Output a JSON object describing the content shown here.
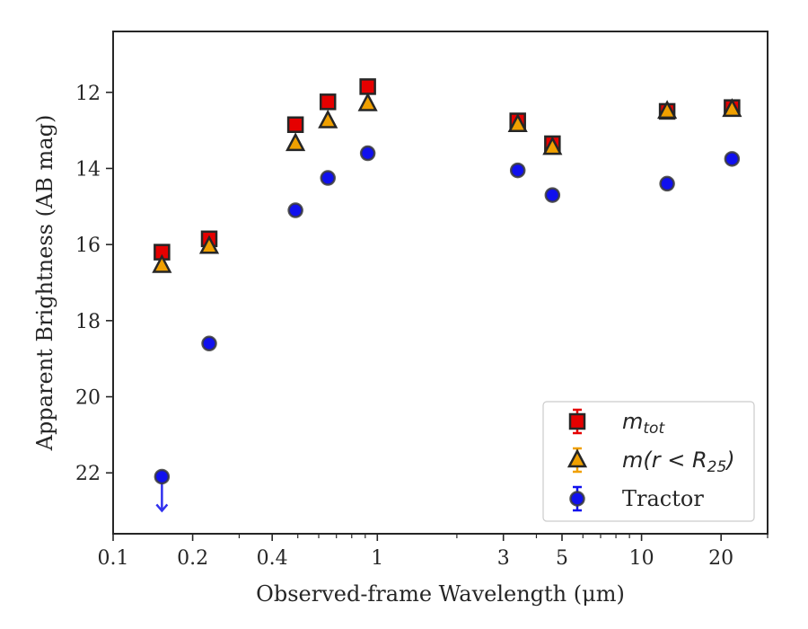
{
  "chart_data": {
    "type": "scatter",
    "title": "",
    "xlabel": "Observed-frame Wavelength (μm)",
    "ylabel": "Apparent Brightness (AB mag)",
    "xscale": "log",
    "xlim": [
      0.1,
      30
    ],
    "ylim": [
      23.6,
      10.4
    ],
    "y_inverted": true,
    "grid": false,
    "legend_position": "bottom-right",
    "xticks": [
      0.1,
      0.2,
      0.4,
      1,
      3,
      5,
      10,
      20
    ],
    "xtick_labels": [
      "0.1",
      "0.2",
      "0.4",
      "1",
      "3",
      "5",
      "10",
      "20"
    ],
    "yticks": [
      12,
      14,
      16,
      18,
      20,
      22
    ],
    "ytick_labels": [
      "12",
      "14",
      "16",
      "18",
      "20",
      "22"
    ],
    "series": [
      {
        "name": "m_tot",
        "legend_label": "m",
        "legend_sub": "tot",
        "marker": "square",
        "color": "#e50000",
        "edge": "#262626",
        "x": [
          0.153,
          0.231,
          0.49,
          0.65,
          0.92,
          3.4,
          4.6,
          12.5,
          22.0
        ],
        "y": [
          16.2,
          15.85,
          12.85,
          12.25,
          11.85,
          12.75,
          13.35,
          12.5,
          12.4
        ]
      },
      {
        "name": "m(r < R25)",
        "legend_label": "m(r < R",
        "legend_sub": "25",
        "legend_suffix": ")",
        "marker": "triangle",
        "color": "#f0a000",
        "edge": "#262626",
        "x": [
          0.153,
          0.231,
          0.49,
          0.65,
          0.92,
          3.4,
          4.6,
          12.5,
          22.0
        ],
        "y": [
          16.55,
          16.05,
          13.35,
          12.75,
          12.3,
          12.85,
          13.45,
          12.5,
          12.45
        ]
      },
      {
        "name": "Tractor",
        "legend_label": "Tractor",
        "marker": "circle",
        "color": "#1010ee",
        "edge": "#3a3a3a",
        "x": [
          0.153,
          0.231,
          0.49,
          0.65,
          0.92,
          3.4,
          4.6,
          12.5,
          22.0
        ],
        "y": [
          22.1,
          18.6,
          15.1,
          14.25,
          13.6,
          14.05,
          14.7,
          14.4,
          13.75
        ],
        "upper_limit_index": 0,
        "upper_limit_color": "#3030ee"
      }
    ]
  }
}
